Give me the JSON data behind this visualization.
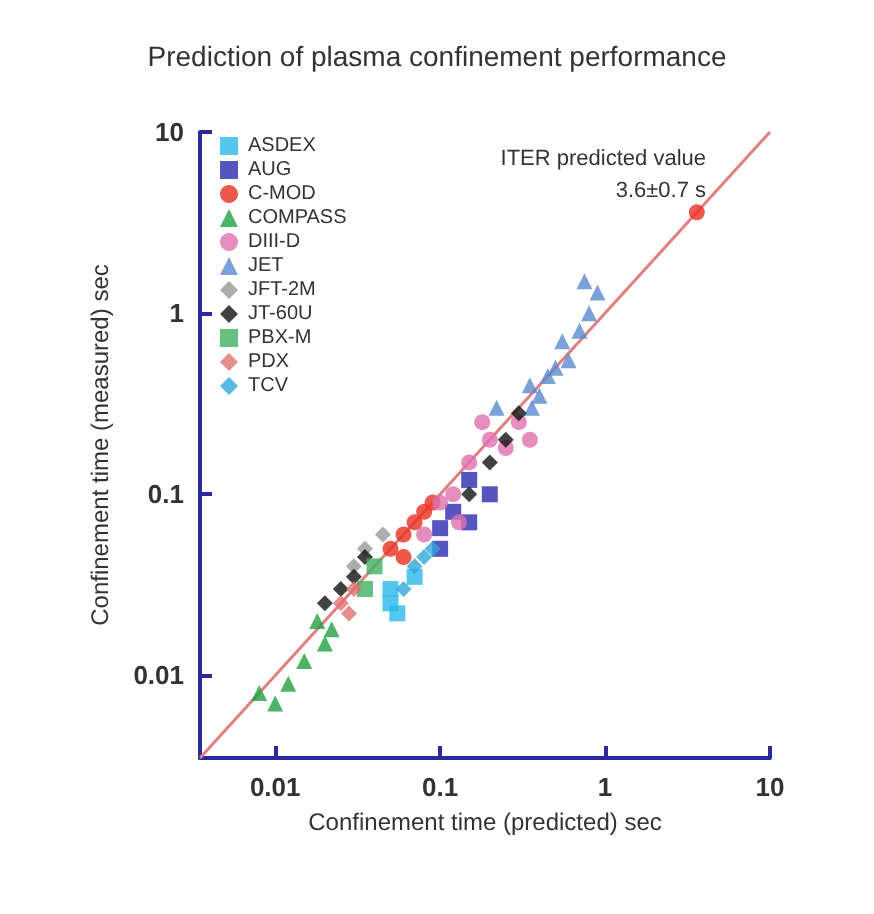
{
  "chart_data": {
    "type": "scatter",
    "title": "Prediction of plasma confinement performance",
    "xlabel": "Confinement time (predicted) sec",
    "ylabel": "Confinement time (measured) sec",
    "log": "xy",
    "grid": false,
    "legend": "top left",
    "xlim": [
      0.0035,
      10
    ],
    "ylim": [
      0.0035,
      10
    ],
    "xticks": [
      0.01,
      0.1,
      1,
      10
    ],
    "yticks": [
      0.01,
      0.1,
      1,
      10
    ],
    "annotations": [
      "ITER predicted value",
      "3.6±0.7 s"
    ],
    "series": [
      {
        "name": "ASDEX",
        "color": "#2ab8e8",
        "marker": "square",
        "x": [
          0.05,
          0.055,
          0.07,
          0.05
        ],
        "values": [
          0.03,
          0.022,
          0.035,
          0.025
        ]
      },
      {
        "name": "AUG",
        "color": "#2a2ab0",
        "marker": "square",
        "x": [
          0.1,
          0.12,
          0.15,
          0.15,
          0.2,
          0.1
        ],
        "values": [
          0.05,
          0.08,
          0.07,
          0.12,
          0.1,
          0.065
        ]
      },
      {
        "name": "C-MOD",
        "color": "#e83020",
        "marker": "circle",
        "x": [
          0.05,
          0.06,
          0.07,
          0.08,
          0.06,
          0.09
        ],
        "values": [
          0.05,
          0.06,
          0.07,
          0.08,
          0.045,
          0.09
        ]
      },
      {
        "name": "COMPASS",
        "color": "#20a040",
        "marker": "triangle",
        "x": [
          0.008,
          0.01,
          0.012,
          0.015,
          0.02,
          0.018,
          0.022
        ],
        "values": [
          0.008,
          0.007,
          0.009,
          0.012,
          0.015,
          0.02,
          0.018
        ]
      },
      {
        "name": "DIII-D",
        "color": "#e070b0",
        "marker": "circle",
        "x": [
          0.08,
          0.1,
          0.12,
          0.15,
          0.2,
          0.25,
          0.3,
          0.18,
          0.35,
          0.13
        ],
        "values": [
          0.06,
          0.09,
          0.1,
          0.15,
          0.2,
          0.18,
          0.25,
          0.25,
          0.2,
          0.07
        ]
      },
      {
        "name": "JET",
        "color": "#5b8ad0",
        "marker": "triangle",
        "x": [
          0.22,
          0.36,
          0.4,
          0.5,
          0.6,
          0.7,
          0.8,
          0.9,
          0.75,
          0.55,
          0.35,
          0.45
        ],
        "values": [
          0.3,
          0.3,
          0.35,
          0.5,
          0.55,
          0.8,
          1.0,
          1.3,
          1.5,
          0.7,
          0.4,
          0.45
        ]
      },
      {
        "name": "JFT-2M",
        "color": "#999999",
        "marker": "diamond",
        "x": [
          0.03,
          0.045,
          0.035
        ],
        "values": [
          0.04,
          0.06,
          0.05
        ]
      },
      {
        "name": "JT-60U",
        "color": "#111111",
        "marker": "diamond",
        "x": [
          0.2,
          0.25,
          0.3,
          0.15,
          0.02,
          0.025,
          0.03,
          0.035
        ],
        "values": [
          0.15,
          0.2,
          0.28,
          0.1,
          0.025,
          0.03,
          0.035,
          0.045
        ]
      },
      {
        "name": "PBX-M",
        "color": "#40b060",
        "marker": "square",
        "x": [
          0.04,
          0.035
        ],
        "values": [
          0.04,
          0.03
        ]
      },
      {
        "name": "PDX",
        "color": "#e07070",
        "marker": "diamond",
        "x": [
          0.025,
          0.03,
          0.028
        ],
        "values": [
          0.025,
          0.03,
          0.022
        ]
      },
      {
        "name": "TCV",
        "color": "#30a8d8",
        "marker": "diamond",
        "x": [
          0.06,
          0.07,
          0.08,
          0.09
        ],
        "values": [
          0.03,
          0.04,
          0.045,
          0.05
        ]
      },
      {
        "color": "#e83020",
        "marker": "circle",
        "x": [
          3.6
        ],
        "values": [
          3.6
        ]
      },
      {
        "type": "line",
        "color": "#e08080",
        "marker": "none",
        "x": [
          0.0035,
          10
        ],
        "values": [
          0.0035,
          10
        ]
      }
    ]
  }
}
